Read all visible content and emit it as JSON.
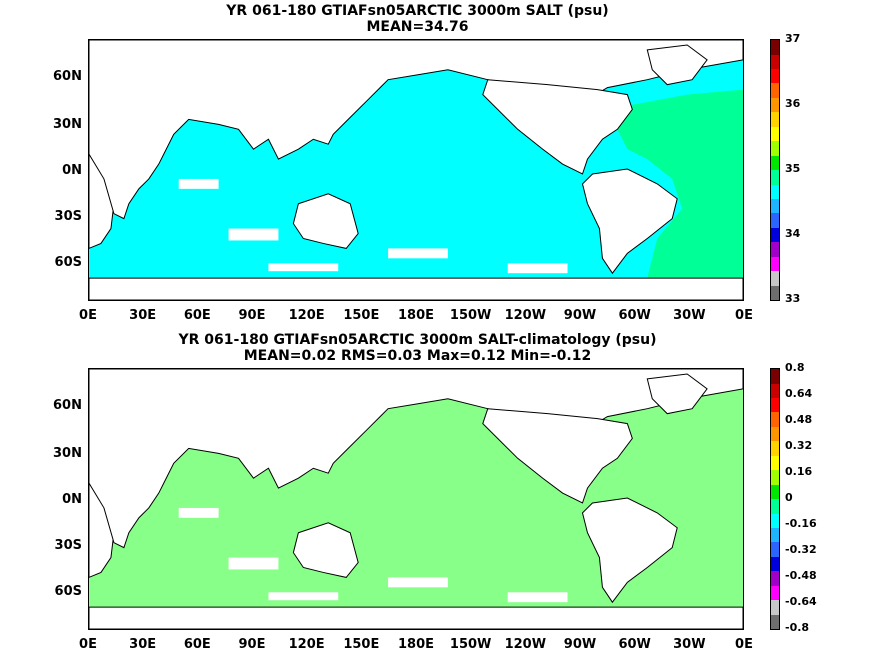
{
  "panels": [
    {
      "title_line1": "YR 061-180 GTIAFsn05ARCTIC 3000m SALT (psu)",
      "title_line2": "MEAN=34.76",
      "colorbar_labels": [
        "37",
        "36",
        "35",
        "34",
        "33"
      ],
      "colorbar_colors": [
        "#6e6e6e",
        "#c8c8c8",
        "#ff00ff",
        "#a000c8",
        "#0000dc",
        "#2c64ff",
        "#1eb4ff",
        "#00ffff",
        "#00ff96",
        "#00e600",
        "#a0ff00",
        "#ffff00",
        "#ffd200",
        "#ff9600",
        "#ff6400",
        "#ff0000",
        "#c80000",
        "#780000"
      ],
      "ocean_color": "#00ffff",
      "atlantic_color": "#00ff96"
    },
    {
      "title_line1": "YR 061-180 GTIAFsn05ARCTIC 3000m SALT-climatology (psu)",
      "title_line2": "MEAN=0.02   RMS=0.03   Max=0.12   Min=-0.12",
      "colorbar_labels": [
        "0.8",
        "0.64",
        "0.48",
        "0.32",
        "0.16",
        "0",
        "-0.16",
        "-0.32",
        "-0.48",
        "-0.64",
        "-0.8"
      ],
      "colorbar_colors": [
        "#6e6e6e",
        "#c8c8c8",
        "#ff00ff",
        "#a000c8",
        "#0000dc",
        "#2c64ff",
        "#1eb4ff",
        "#00ffff",
        "#00ff96",
        "#00e600",
        "#a0ff00",
        "#ffff00",
        "#ffd200",
        "#ff9600",
        "#ff6400",
        "#ff0000",
        "#c80000",
        "#780000"
      ],
      "ocean_color": "#88ff88",
      "atlantic_color": "#88ff88"
    }
  ],
  "lat_labels": [
    "60N",
    "30N",
    "0N",
    "30S",
    "60S"
  ],
  "lon_labels": [
    "0E",
    "30E",
    "60E",
    "90E",
    "120E",
    "150E",
    "180E",
    "150W",
    "120W",
    "90W",
    "60W",
    "30W",
    "0E"
  ]
}
